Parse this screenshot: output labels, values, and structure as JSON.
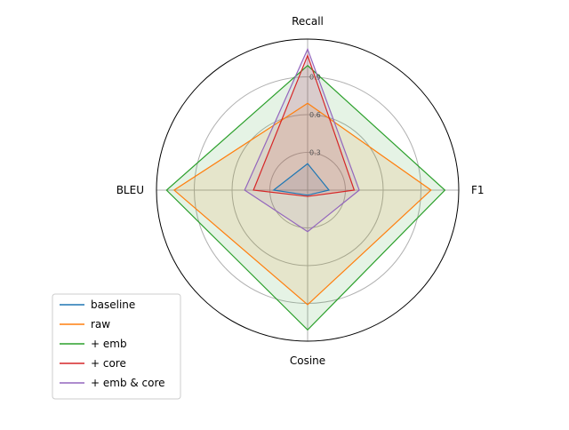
{
  "chart_data": {
    "type": "radar",
    "axes": [
      "Recall",
      "F1",
      "Cosine",
      "BLEU"
    ],
    "radial_ticks": [
      0.3,
      0.6,
      0.9
    ],
    "radial_tick_labels": [
      "0.3",
      "0.6",
      "0.9"
    ],
    "rlim": [
      0,
      1.2
    ],
    "grid": true,
    "legend_position": "lower-left",
    "series": [
      {
        "name": "baseline",
        "color": "#1f77b4",
        "values": [
          0.21,
          0.17,
          0.04,
          0.27
        ]
      },
      {
        "name": "raw",
        "color": "#ff7f0e",
        "values": [
          0.69,
          0.98,
          0.91,
          1.06
        ]
      },
      {
        "name": "+ emb",
        "color": "#2ca02c",
        "values": [
          0.99,
          1.09,
          1.11,
          1.12
        ]
      },
      {
        "name": "+ core",
        "color": "#d62728",
        "values": [
          1.07,
          0.37,
          0.05,
          0.43
        ]
      },
      {
        "name": "+ emb & core",
        "color": "#9467bd",
        "values": [
          1.12,
          0.41,
          0.33,
          0.5
        ]
      }
    ]
  }
}
